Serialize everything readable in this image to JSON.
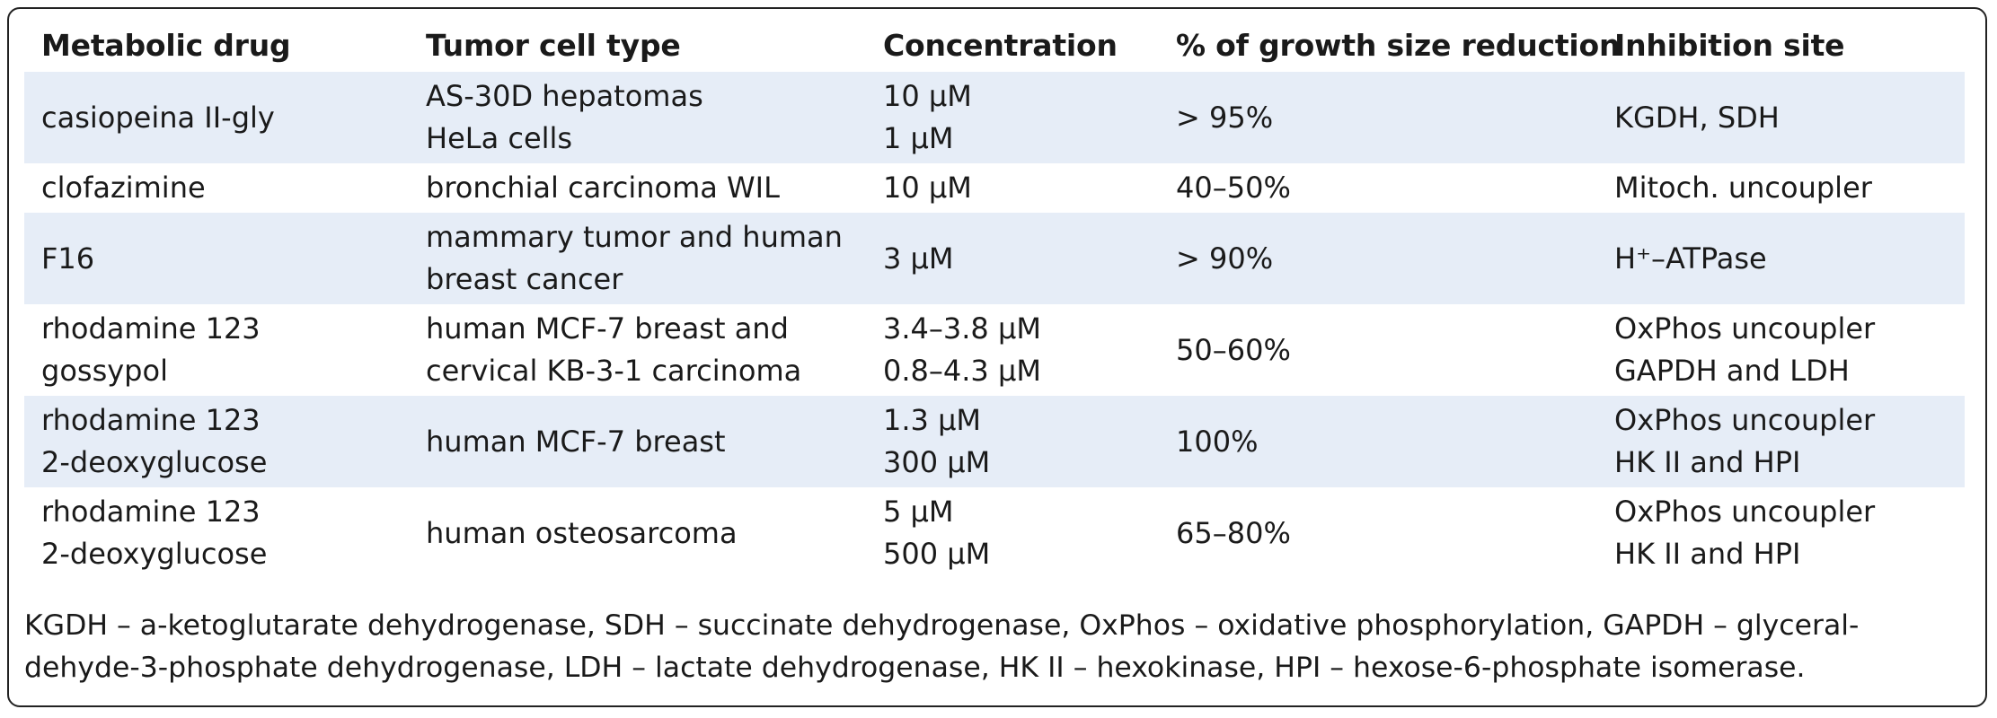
{
  "table": {
    "headers": [
      "Metabolic drug",
      "Tumor cell type",
      "Concentration",
      "% of growth size reduction",
      "Inhibition site"
    ],
    "rows": [
      {
        "drug": [
          "casiopeina II-gly"
        ],
        "cell": [
          "AS-30D hepatomas",
          "HeLa cells"
        ],
        "conc": [
          "10 µM",
          "1 µM"
        ],
        "reduction": [
          "> 95%"
        ],
        "site": [
          "KGDH, SDH"
        ]
      },
      {
        "drug": [
          "clofazimine"
        ],
        "cell": [
          "bronchial carcinoma WIL"
        ],
        "conc": [
          "10 µM"
        ],
        "reduction": [
          "40–50%"
        ],
        "site": [
          "Mitoch. uncoupler"
        ]
      },
      {
        "drug": [
          "F16"
        ],
        "cell": [
          "mammary tumor and human",
          "breast cancer"
        ],
        "conc": [
          "3 µM"
        ],
        "reduction": [
          "> 90%"
        ],
        "site": [
          "H⁺–ATPase"
        ]
      },
      {
        "drug": [
          "rhodamine 123",
          "gossypol"
        ],
        "cell": [
          "human MCF-7 breast and",
          "cervical KB-3-1 carcinoma"
        ],
        "conc": [
          "3.4–3.8 µM",
          "0.8–4.3 µM"
        ],
        "reduction": [
          "50–60%"
        ],
        "site": [
          "OxPhos uncoupler",
          "GAPDH and LDH"
        ]
      },
      {
        "drug": [
          "rhodamine 123",
          "2-deoxyglucose"
        ],
        "cell": [
          "human MCF-7 breast"
        ],
        "conc": [
          "1.3 µM",
          "300 µM"
        ],
        "reduction": [
          "100%"
        ],
        "site": [
          "OxPhos uncoupler",
          "HK II and HPI"
        ]
      },
      {
        "drug": [
          "rhodamine 123",
          "2-deoxyglucose"
        ],
        "cell": [
          "human osteosarcoma"
        ],
        "conc": [
          "5 µM",
          "500 µM"
        ],
        "reduction": [
          "65–80%"
        ],
        "site": [
          "OxPhos uncoupler",
          "HK II and HPI"
        ]
      }
    ],
    "shade_color": "#e6edf7"
  },
  "footnote": {
    "lines": [
      "KGDH – a-ketoglutarate dehydrogenase, SDH – succinate dehydrogenase, OxPhos – oxidative phosphorylation, GAPDH – glyceral-",
      "dehyde-3-phosphate dehydrogenase, LDH – lactate dehydrogenase, HK II – hexokinase, HPI – hexose-6-phosphate isomerase."
    ]
  }
}
